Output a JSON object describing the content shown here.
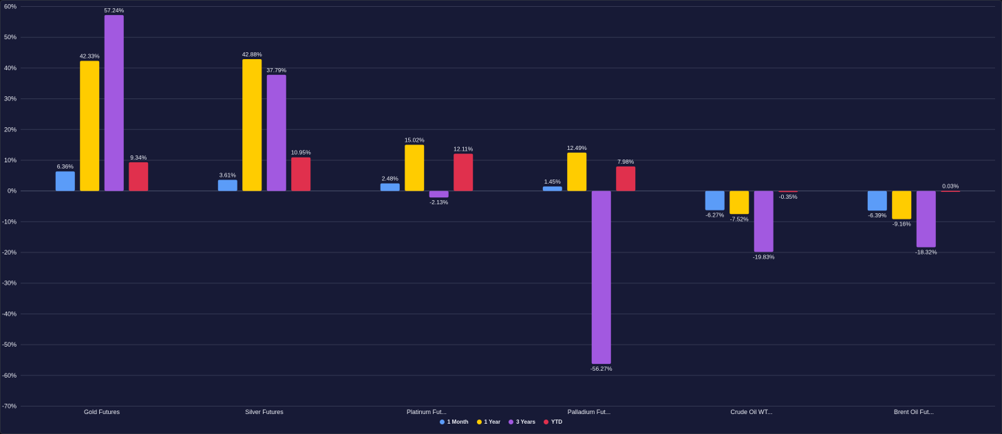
{
  "chart_data": {
    "type": "bar",
    "categories": [
      "Gold Futures",
      "Silver Futures",
      "Platinum Fut...",
      "Palladium Fut...",
      "Crude Oil WT...",
      "Brent Oil Fut..."
    ],
    "series": [
      {
        "name": "1 Month",
        "color": "#5b9cf8",
        "values": [
          6.36,
          3.61,
          2.48,
          1.45,
          -6.27,
          -6.39
        ],
        "labels": [
          "6.36%",
          "3.61%",
          "2.48%",
          "1.45%",
          "-6.27%",
          "-6.39%"
        ]
      },
      {
        "name": "1 Year",
        "color": "#ffcc00",
        "values": [
          42.33,
          42.88,
          15.02,
          12.49,
          -7.52,
          -9.16
        ],
        "labels": [
          "42.33%",
          "42.88%",
          "15.02%",
          "12.49%",
          "-7.52%",
          "-9.16%"
        ]
      },
      {
        "name": "3 Years",
        "color": "#a259e0",
        "values": [
          57.24,
          37.79,
          -2.13,
          -56.27,
          -19.83,
          -18.32
        ],
        "labels": [
          "57.24%",
          "37.79%",
          "-2.13%",
          "-56.27%",
          "-19.83%",
          "-18.32%"
        ]
      },
      {
        "name": "YTD",
        "color": "#e0304d",
        "values": [
          9.34,
          10.95,
          12.11,
          7.98,
          -0.35,
          0.03
        ],
        "labels": [
          "9.34%",
          "10.95%",
          "12.11%",
          "7.98%",
          "-0.35%",
          "0.03%"
        ]
      }
    ],
    "ylim": [
      -70,
      60
    ],
    "yticks": [
      60,
      50,
      40,
      30,
      20,
      10,
      0,
      -10,
      -20,
      -30,
      -40,
      -50,
      -60,
      -70
    ],
    "ytick_labels": [
      "60%",
      "50%",
      "40%",
      "30%",
      "20%",
      "10%",
      "0%",
      "-10%",
      "-20%",
      "-30%",
      "-40%",
      "-50%",
      "-60%",
      "-70%"
    ],
    "grid": true,
    "legend_position": "bottom-center"
  }
}
